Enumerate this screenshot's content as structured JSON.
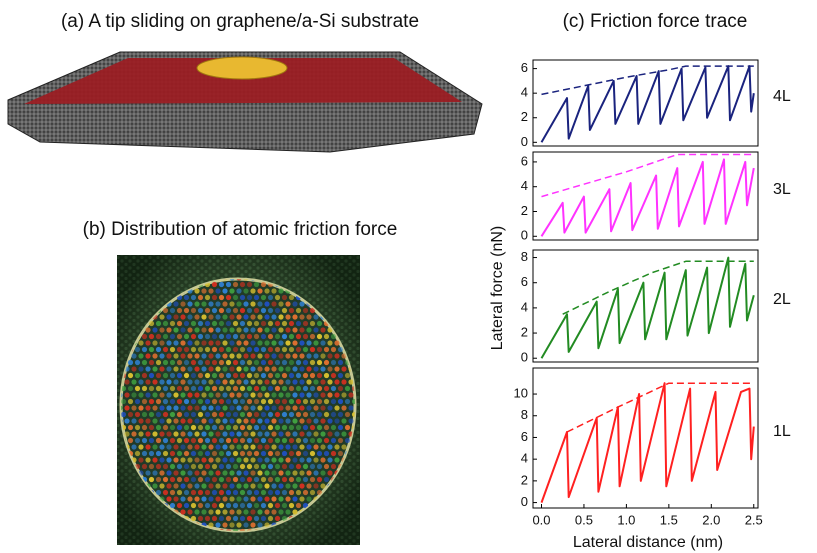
{
  "panel_a": {
    "title": "(a) A tip sliding on graphene/a-Si substrate"
  },
  "panel_b": {
    "title": "(b) Distribution of atomic friction force"
  },
  "chart_data": [
    {
      "type": "line",
      "title": "(c) Friction force trace",
      "ylabel": "Lateral force (nN)",
      "label": "4L",
      "xlim": [
        -0.1,
        2.55
      ],
      "ylim": [
        -0.3,
        6.7
      ],
      "yticks": [
        0,
        2,
        4,
        6
      ],
      "series": [
        {
          "name": "4L",
          "color": "#1a237e",
          "x": [
            0,
            0.3,
            0.32,
            0.55,
            0.57,
            0.85,
            0.87,
            1.12,
            1.14,
            1.38,
            1.4,
            1.65,
            1.67,
            1.93,
            1.95,
            2.2,
            2.22,
            2.45,
            2.47,
            2.5
          ],
          "values": [
            0,
            3.6,
            0.3,
            4.6,
            1.0,
            5.0,
            1.5,
            5.4,
            1.5,
            5.8,
            1.5,
            6.0,
            1.8,
            6.1,
            2.0,
            6.2,
            1.8,
            6.2,
            2.5,
            4.0
          ]
        },
        {
          "color": "#1a237e",
          "style": "dashed",
          "x": [
            0,
            0.5,
            1,
            1.5,
            1.7,
            2.5
          ],
          "values": [
            3.9,
            4.6,
            5.3,
            5.9,
            6.2,
            6.2
          ]
        }
      ]
    },
    {
      "type": "line",
      "label": "3L",
      "xlim": [
        -0.1,
        2.55
      ],
      "ylim": [
        -0.3,
        6.8
      ],
      "yticks": [
        0,
        2,
        4,
        6
      ],
      "series": [
        {
          "name": "3L",
          "color": "#ff33ff",
          "x": [
            0,
            0.25,
            0.27,
            0.5,
            0.52,
            0.8,
            0.82,
            1.05,
            1.07,
            1.35,
            1.37,
            1.6,
            1.62,
            1.9,
            1.92,
            2.15,
            2.17,
            2.4,
            2.42,
            2.5
          ],
          "values": [
            0,
            2.7,
            0.3,
            3.2,
            0.3,
            3.8,
            0.4,
            4.3,
            0.5,
            4.9,
            0.6,
            5.5,
            0.8,
            6.0,
            1.0,
            6.2,
            1.0,
            6.0,
            2.5,
            5.5
          ]
        },
        {
          "color": "#ff33ff",
          "style": "dashed",
          "x": [
            0,
            0.5,
            1,
            1.6,
            2.5
          ],
          "values": [
            3.2,
            4.2,
            5.2,
            6.6,
            6.6
          ]
        }
      ]
    },
    {
      "type": "line",
      "label": "2L",
      "xlim": [
        -0.1,
        2.55
      ],
      "ylim": [
        -0.3,
        8.6
      ],
      "yticks": [
        0,
        2,
        4,
        6,
        8
      ],
      "series": [
        {
          "name": "2L",
          "color": "#228b22",
          "x": [
            0,
            0.3,
            0.32,
            0.65,
            0.67,
            0.9,
            0.92,
            1.2,
            1.22,
            1.45,
            1.47,
            1.7,
            1.72,
            1.95,
            1.97,
            2.2,
            2.22,
            2.4,
            2.42,
            2.5
          ],
          "values": [
            0,
            3.5,
            0.5,
            4.5,
            0.8,
            5.5,
            1.2,
            6.0,
            1.5,
            6.8,
            1.5,
            7.0,
            1.8,
            7.2,
            2.0,
            8.0,
            2.5,
            7.5,
            3.0,
            5.0
          ]
        },
        {
          "color": "#228b22",
          "style": "dashed",
          "x": [
            0.25,
            0.8,
            1.3,
            1.7,
            2.5
          ],
          "values": [
            3.5,
            5.3,
            6.8,
            7.7,
            7.7
          ]
        }
      ]
    },
    {
      "type": "line",
      "label": "1L",
      "xlabel": "Lateral distance (nm)",
      "xlim": [
        -0.1,
        2.55
      ],
      "ylim": [
        -0.5,
        12.4
      ],
      "yticks": [
        0,
        2,
        4,
        6,
        8,
        10
      ],
      "xticks": [
        {
          "value": 0,
          "label": "0.0"
        },
        0.5,
        {
          "value": 1,
          "label": "1.0"
        },
        1.5,
        {
          "value": 2,
          "label": "2.0"
        },
        2.5
      ],
      "series": [
        {
          "name": "1L",
          "color": "#ff2020",
          "x": [
            0,
            0.3,
            0.32,
            0.65,
            0.67,
            0.9,
            0.92,
            1.15,
            1.17,
            1.45,
            1.47,
            1.75,
            1.77,
            2.05,
            2.07,
            2.35,
            2.45,
            2.47,
            2.5
          ],
          "values": [
            0,
            6.5,
            0.5,
            7.8,
            1.0,
            8.8,
            1.5,
            10.0,
            2.0,
            11.0,
            1.5,
            10.5,
            2.0,
            10.2,
            3.0,
            10.2,
            10.5,
            4.0,
            7.0
          ]
        },
        {
          "color": "#ff2020",
          "style": "dashed",
          "x": [
            0.3,
            0.9,
            1.5,
            2.5
          ],
          "values": [
            6.5,
            8.8,
            11.0,
            11.0
          ]
        }
      ]
    }
  ]
}
